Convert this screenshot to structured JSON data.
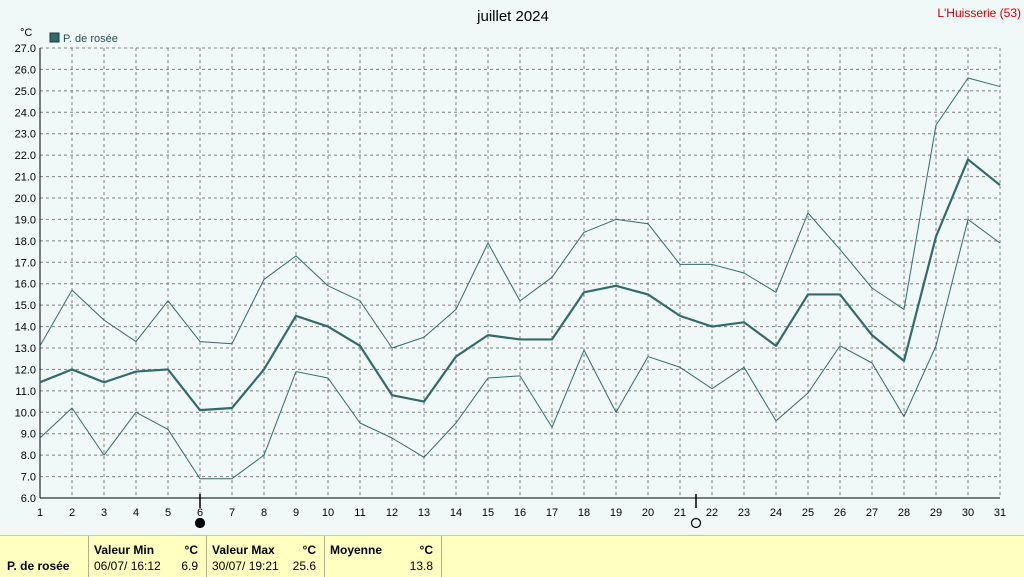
{
  "chart_data": {
    "type": "line",
    "title": "juillet 2024",
    "station": "L'Huisserie (53)",
    "unit_label": "°C",
    "legend": "P. de rosée",
    "legend_position": "top-left",
    "grid": true,
    "ylim": [
      6.0,
      27.0
    ],
    "y_ticks": [
      "6.0",
      "7.0",
      "8.0",
      "9.0",
      "10.0",
      "11.0",
      "12.0",
      "13.0",
      "14.0",
      "15.0",
      "16.0",
      "17.0",
      "18.0",
      "19.0",
      "20.0",
      "21.0",
      "22.0",
      "23.0",
      "24.0",
      "25.0",
      "26.0",
      "27.0"
    ],
    "x": [
      1,
      2,
      3,
      4,
      5,
      6,
      7,
      8,
      9,
      10,
      11,
      12,
      13,
      14,
      15,
      16,
      17,
      18,
      19,
      20,
      21,
      22,
      23,
      24,
      25,
      26,
      27,
      28,
      29,
      30,
      31
    ],
    "series": [
      {
        "role": "mean",
        "values": [
          11.4,
          12.0,
          11.4,
          11.9,
          12.0,
          10.1,
          10.2,
          12.0,
          14.5,
          14.0,
          13.1,
          10.8,
          10.5,
          12.6,
          13.6,
          13.4,
          13.4,
          15.6,
          15.9,
          15.5,
          14.5,
          14.0,
          14.2,
          13.1,
          15.5,
          15.5,
          13.6,
          12.4,
          18.2,
          21.8,
          20.6
        ]
      },
      {
        "role": "max",
        "values": [
          13.1,
          15.7,
          14.3,
          13.3,
          15.2,
          13.3,
          13.2,
          16.2,
          17.3,
          15.9,
          15.2,
          13.0,
          13.5,
          14.8,
          17.9,
          15.2,
          16.3,
          18.4,
          19.0,
          18.8,
          16.9,
          16.9,
          16.5,
          15.6,
          19.3,
          17.6,
          15.8,
          14.8,
          23.4,
          25.6,
          25.2
        ]
      },
      {
        "role": "min",
        "values": [
          8.8,
          10.2,
          8.0,
          10.0,
          9.2,
          6.9,
          6.9,
          8.0,
          11.9,
          11.6,
          9.5,
          8.8,
          7.9,
          9.5,
          11.6,
          11.7,
          9.3,
          12.9,
          10.0,
          12.6,
          12.1,
          11.1,
          12.1,
          9.6,
          10.9,
          13.1,
          12.3,
          9.8,
          13.1,
          19.0,
          17.9
        ]
      }
    ],
    "moon_markers": [
      {
        "day": 6,
        "phase": "new-moon"
      },
      {
        "day": 21.5,
        "phase": "full-moon"
      }
    ]
  },
  "colors": {
    "line": "#336b6b",
    "grid": "#808080",
    "background": "#f0f8f8",
    "station": "#cc0000",
    "stats_bg": "#ffffc0"
  },
  "stats": {
    "row_label": "P. de rosée",
    "min_header": "Valeur Min",
    "min_unit": "°C",
    "min_datetime": "06/07/  16:12",
    "min_value": "6.9",
    "max_header": "Valeur Max",
    "max_unit": "°C",
    "max_datetime": "30/07/  19:21",
    "max_value": "25.6",
    "avg_header": "Moyenne",
    "avg_unit": "°C",
    "avg_value": "13.8"
  }
}
